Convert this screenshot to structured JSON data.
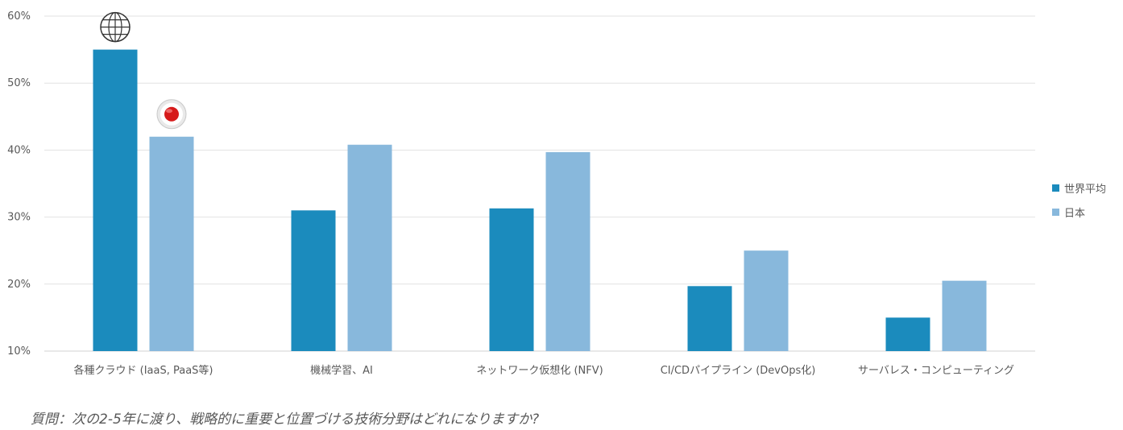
{
  "chart_data": {
    "type": "bar",
    "categories": [
      "各種クラウド (IaaS, PaaS等)",
      "機械学習、AI",
      "ネットワーク仮想化 (NFV)",
      "CI/CDパイプライン (DevOps化)",
      "サーバレス・コンピューティング"
    ],
    "series": [
      {
        "name": "世界平均",
        "color": "#1b8bbd",
        "values": [
          55,
          31,
          31.3,
          19.7,
          15
        ]
      },
      {
        "name": "日本",
        "color": "#88b8dc",
        "values": [
          42,
          40.8,
          39.7,
          25,
          20.5
        ]
      }
    ],
    "yticks": [
      "10%",
      "20%",
      "30%",
      "40%",
      "50%",
      "60%"
    ],
    "ylim": [
      10,
      60
    ],
    "grid": true,
    "legend_position": "right",
    "markers": [
      {
        "series": "世界平均",
        "category": "各種クラウド (IaaS, PaaS等)",
        "icon": "globe-icon"
      },
      {
        "series": "日本",
        "category": "各種クラウド (IaaS, PaaS等)",
        "icon": "japan-flag-icon"
      }
    ]
  },
  "question": "質問：次の2-5年に渡り、戦略的に重要と位置づける技術分野はどれになりますか?"
}
